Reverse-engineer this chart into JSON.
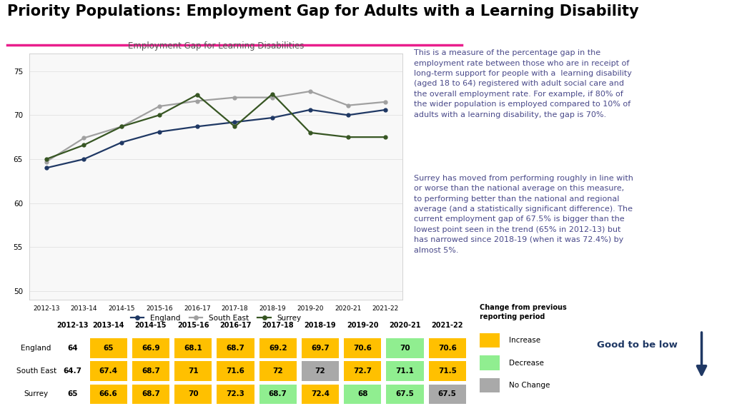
{
  "title": "Priority Populations: Employment Gap for Adults with a Learning Disability",
  "chart_title": "Employment Gap for Learning Disabilities",
  "years": [
    "2012-13",
    "2013-14",
    "2014-15",
    "2015-16",
    "2016-17",
    "2017-18",
    "2018-19",
    "2019-20",
    "2020-21",
    "2021-22"
  ],
  "england": [
    64,
    65,
    66.9,
    68.1,
    68.7,
    69.2,
    69.7,
    70.6,
    70,
    70.6
  ],
  "south_east": [
    64.7,
    67.4,
    68.7,
    71,
    71.6,
    72,
    72,
    72.7,
    71.1,
    71.5
  ],
  "surrey": [
    65,
    66.6,
    68.7,
    70,
    72.3,
    68.7,
    72.4,
    68,
    67.5,
    67.5
  ],
  "england_color": "#1f3864",
  "south_east_color": "#a0a0a0",
  "surrey_color": "#375623",
  "ylim": [
    49,
    77
  ],
  "yticks": [
    50,
    55,
    60,
    65,
    70,
    75
  ],
  "description1": "This is a measure of the percentage gap in the\nemployment rate between those who are in receipt of\nlong-term support for people with a  learning disability\n(aged 18 to 64) registered with adult social care and\nthe overall employment rate. For example, if 80% of\nthe wider population is employed compared to 10% of\nadults with a learning disability, the gap is 70%.",
  "description2": "Surrey has moved from performing roughly in line with\nor worse than the national average on this measure,\nto performing better than the national and regional\naverage (and a statistically significant difference). The\ncurrent employment gap of 67.5% is bigger than the\nlowest point seen in the trend (65% in 2012-13) but\nhas narrowed since 2018-19 (when it was 72.4%) by\nalmost 5%.",
  "table_rows": [
    "England",
    "South East",
    "Surrey"
  ],
  "table_data": [
    [
      64,
      65,
      66.9,
      68.1,
      68.7,
      69.2,
      69.7,
      70.6,
      70,
      70.6
    ],
    [
      64.7,
      67.4,
      68.7,
      71,
      71.6,
      72,
      72,
      72.7,
      71.1,
      71.5
    ],
    [
      65,
      66.6,
      68.7,
      70,
      72.3,
      68.7,
      72.4,
      68,
      67.5,
      67.5
    ]
  ],
  "england_colors": [
    "none",
    "#FFC000",
    "#FFC000",
    "#FFC000",
    "#FFC000",
    "#FFC000",
    "#FFC000",
    "#FFC000",
    "#90EE90",
    "#FFC000"
  ],
  "south_east_colors": [
    "none",
    "#FFC000",
    "#FFC000",
    "#FFC000",
    "#FFC000",
    "#FFC000",
    "#A9A9A9",
    "#FFC000",
    "#90EE90",
    "#FFC000"
  ],
  "surrey_colors": [
    "none",
    "#FFC000",
    "#FFC000",
    "#FFC000",
    "#FFC000",
    "#90EE90",
    "#FFC000",
    "#90EE90",
    "#90EE90",
    "#A9A9A9"
  ],
  "legend_increase_color": "#FFC000",
  "legend_decrease_color": "#90EE90",
  "legend_nochange_color": "#A9A9A9",
  "good_to_be_low_color": "#1f3864",
  "title_line_color": "#e91e8c",
  "text_color": "#4a4a8a",
  "bg_color": "#ffffff"
}
